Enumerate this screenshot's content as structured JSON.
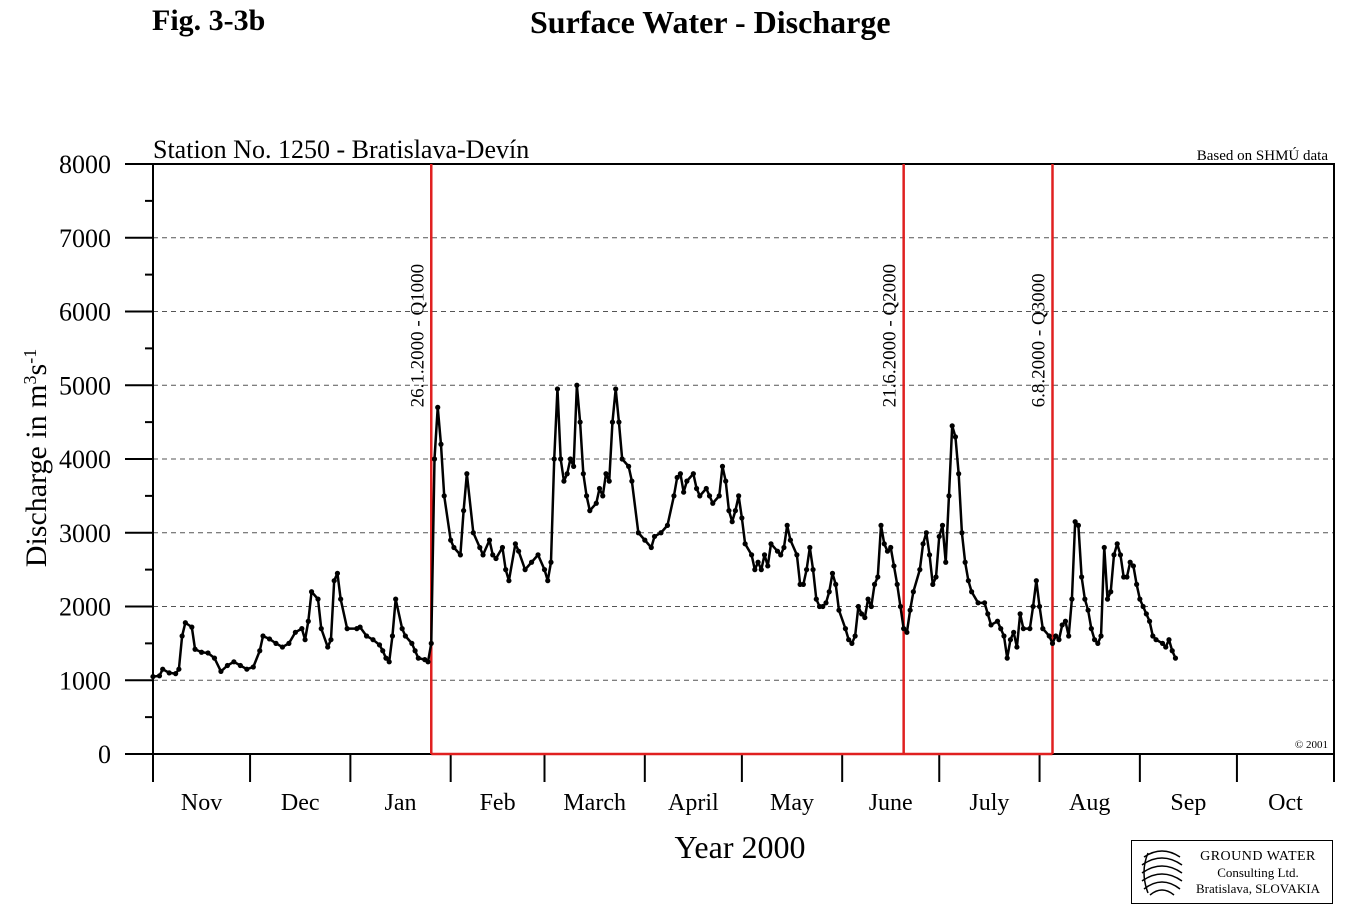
{
  "figure": {
    "number": "Fig. 3-3b",
    "title": "Surface Water - Discharge"
  },
  "chart_data": {
    "type": "line",
    "station": "Station No. 1250 - Bratislava-Devín",
    "source_note": "Based on SHMÚ data",
    "copyright": "© 2001",
    "xlabel": "Year 2000",
    "ylabel": "Discharge in m3s-1",
    "ylim": [
      0,
      8000
    ],
    "yticks": [
      0,
      1000,
      2000,
      3000,
      4000,
      5000,
      6000,
      7000,
      8000
    ],
    "grid": "dashed horizontal",
    "x_domain_days": [
      0,
      365
    ],
    "months": [
      {
        "label": "Nov",
        "start": 0
      },
      {
        "label": "Dec",
        "start": 30
      },
      {
        "label": "Jan",
        "start": 61
      },
      {
        "label": "Feb",
        "start": 92
      },
      {
        "label": "March",
        "start": 121
      },
      {
        "label": "April",
        "start": 152
      },
      {
        "label": "May",
        "start": 182
      },
      {
        "label": "June",
        "start": 213
      },
      {
        "label": "July",
        "start": 243
      },
      {
        "label": "Aug",
        "start": 274
      },
      {
        "label": "Sep",
        "start": 305
      },
      {
        "label": "Oct",
        "start": 335
      }
    ],
    "events": [
      {
        "label": "26.1.2000 - Q1000",
        "day": 86
      },
      {
        "label": "21.6.2000 - Q2000",
        "day": 232
      },
      {
        "label": "6.8.2000 - Q3000",
        "day": 278
      }
    ],
    "series": [
      {
        "values": [
          [
            0,
            1050
          ],
          [
            2,
            1060
          ],
          [
            3,
            1150
          ],
          [
            5,
            1100
          ],
          [
            7,
            1090
          ],
          [
            8,
            1150
          ],
          [
            9,
            1600
          ],
          [
            10,
            1780
          ],
          [
            12,
            1720
          ],
          [
            13,
            1420
          ],
          [
            15,
            1380
          ],
          [
            17,
            1370
          ],
          [
            19,
            1300
          ],
          [
            21,
            1120
          ],
          [
            23,
            1200
          ],
          [
            25,
            1250
          ],
          [
            27,
            1200
          ],
          [
            29,
            1150
          ],
          [
            31,
            1180
          ],
          [
            33,
            1400
          ],
          [
            34,
            1600
          ],
          [
            36,
            1560
          ],
          [
            38,
            1500
          ],
          [
            40,
            1450
          ],
          [
            42,
            1500
          ],
          [
            44,
            1650
          ],
          [
            46,
            1700
          ],
          [
            47,
            1550
          ],
          [
            48,
            1800
          ],
          [
            49,
            2200
          ],
          [
            51,
            2100
          ],
          [
            52,
            1700
          ],
          [
            54,
            1450
          ],
          [
            55,
            1550
          ],
          [
            56,
            2350
          ],
          [
            57,
            2450
          ],
          [
            58,
            2100
          ],
          [
            60,
            1700
          ],
          [
            63,
            1700
          ],
          [
            64,
            1720
          ],
          [
            66,
            1600
          ],
          [
            68,
            1550
          ],
          [
            70,
            1480
          ],
          [
            71,
            1400
          ],
          [
            72,
            1300
          ],
          [
            73,
            1250
          ],
          [
            74,
            1600
          ],
          [
            75,
            2100
          ],
          [
            77,
            1700
          ],
          [
            78,
            1600
          ],
          [
            80,
            1500
          ],
          [
            81,
            1400
          ],
          [
            82,
            1300
          ],
          [
            84,
            1280
          ],
          [
            85,
            1250
          ],
          [
            86,
            1500
          ],
          [
            87,
            4000
          ],
          [
            88,
            4700
          ],
          [
            89,
            4200
          ],
          [
            90,
            3500
          ],
          [
            92,
            2900
          ],
          [
            93,
            2800
          ],
          [
            95,
            2700
          ],
          [
            96,
            3300
          ],
          [
            97,
            3800
          ],
          [
            99,
            3000
          ],
          [
            101,
            2800
          ],
          [
            102,
            2700
          ],
          [
            104,
            2900
          ],
          [
            105,
            2700
          ],
          [
            106,
            2650
          ],
          [
            108,
            2800
          ],
          [
            109,
            2500
          ],
          [
            110,
            2350
          ],
          [
            112,
            2850
          ],
          [
            113,
            2750
          ],
          [
            115,
            2500
          ],
          [
            117,
            2600
          ],
          [
            119,
            2700
          ],
          [
            121,
            2500
          ],
          [
            122,
            2350
          ],
          [
            123,
            2600
          ],
          [
            124,
            4000
          ],
          [
            125,
            4950
          ],
          [
            126,
            4000
          ],
          [
            127,
            3700
          ],
          [
            128,
            3800
          ],
          [
            129,
            4000
          ],
          [
            130,
            3900
          ],
          [
            131,
            5000
          ],
          [
            132,
            4500
          ],
          [
            133,
            3800
          ],
          [
            134,
            3500
          ],
          [
            135,
            3300
          ],
          [
            137,
            3400
          ],
          [
            138,
            3600
          ],
          [
            139,
            3500
          ],
          [
            140,
            3800
          ],
          [
            141,
            3700
          ],
          [
            142,
            4500
          ],
          [
            143,
            4950
          ],
          [
            144,
            4500
          ],
          [
            145,
            4000
          ],
          [
            147,
            3900
          ],
          [
            148,
            3700
          ],
          [
            150,
            3000
          ],
          [
            152,
            2900
          ],
          [
            154,
            2800
          ],
          [
            155,
            2950
          ],
          [
            157,
            3000
          ],
          [
            159,
            3100
          ],
          [
            161,
            3500
          ],
          [
            162,
            3750
          ],
          [
            163,
            3800
          ],
          [
            164,
            3550
          ],
          [
            165,
            3700
          ],
          [
            167,
            3800
          ],
          [
            168,
            3600
          ],
          [
            169,
            3500
          ],
          [
            171,
            3600
          ],
          [
            172,
            3500
          ],
          [
            173,
            3400
          ],
          [
            175,
            3500
          ],
          [
            176,
            3900
          ],
          [
            177,
            3700
          ],
          [
            178,
            3300
          ],
          [
            179,
            3150
          ],
          [
            180,
            3300
          ],
          [
            181,
            3500
          ],
          [
            182,
            3200
          ],
          [
            183,
            2850
          ],
          [
            185,
            2700
          ],
          [
            186,
            2500
          ],
          [
            187,
            2600
          ],
          [
            188,
            2500
          ],
          [
            189,
            2700
          ],
          [
            190,
            2550
          ],
          [
            191,
            2850
          ],
          [
            193,
            2750
          ],
          [
            194,
            2700
          ],
          [
            195,
            2800
          ],
          [
            196,
            3100
          ],
          [
            197,
            2900
          ],
          [
            199,
            2700
          ],
          [
            200,
            2300
          ],
          [
            201,
            2300
          ],
          [
            202,
            2500
          ],
          [
            203,
            2800
          ],
          [
            204,
            2500
          ],
          [
            205,
            2100
          ],
          [
            206,
            2000
          ],
          [
            207,
            2000
          ],
          [
            208,
            2050
          ],
          [
            209,
            2200
          ],
          [
            210,
            2450
          ],
          [
            211,
            2300
          ],
          [
            212,
            1950
          ],
          [
            214,
            1700
          ],
          [
            215,
            1550
          ],
          [
            216,
            1500
          ],
          [
            217,
            1600
          ],
          [
            218,
            2000
          ],
          [
            219,
            1900
          ],
          [
            220,
            1850
          ],
          [
            221,
            2100
          ],
          [
            222,
            2000
          ],
          [
            223,
            2300
          ],
          [
            224,
            2400
          ],
          [
            225,
            3100
          ],
          [
            226,
            2850
          ],
          [
            227,
            2750
          ],
          [
            228,
            2800
          ],
          [
            229,
            2550
          ],
          [
            230,
            2300
          ],
          [
            231,
            2000
          ],
          [
            232,
            1700
          ],
          [
            233,
            1650
          ],
          [
            234,
            1950
          ],
          [
            235,
            2200
          ],
          [
            237,
            2500
          ],
          [
            238,
            2850
          ],
          [
            239,
            3000
          ],
          [
            240,
            2700
          ],
          [
            241,
            2300
          ],
          [
            242,
            2400
          ],
          [
            243,
            2950
          ],
          [
            244,
            3100
          ],
          [
            245,
            2600
          ],
          [
            246,
            3500
          ],
          [
            247,
            4450
          ],
          [
            248,
            4300
          ],
          [
            249,
            3800
          ],
          [
            250,
            3000
          ],
          [
            251,
            2600
          ],
          [
            252,
            2350
          ],
          [
            253,
            2200
          ],
          [
            255,
            2050
          ],
          [
            257,
            2050
          ],
          [
            258,
            1900
          ],
          [
            259,
            1750
          ],
          [
            261,
            1800
          ],
          [
            262,
            1700
          ],
          [
            263,
            1600
          ],
          [
            264,
            1300
          ],
          [
            265,
            1550
          ],
          [
            266,
            1650
          ],
          [
            267,
            1450
          ],
          [
            268,
            1900
          ],
          [
            269,
            1700
          ],
          [
            271,
            1700
          ],
          [
            272,
            2000
          ],
          [
            273,
            2350
          ],
          [
            274,
            2000
          ],
          [
            275,
            1700
          ],
          [
            277,
            1600
          ],
          [
            278,
            1500
          ],
          [
            279,
            1600
          ],
          [
            280,
            1550
          ],
          [
            281,
            1750
          ],
          [
            282,
            1800
          ],
          [
            283,
            1600
          ],
          [
            284,
            2100
          ],
          [
            285,
            3150
          ],
          [
            286,
            3100
          ],
          [
            287,
            2400
          ],
          [
            288,
            2100
          ],
          [
            289,
            1950
          ],
          [
            290,
            1700
          ],
          [
            291,
            1550
          ],
          [
            292,
            1500
          ],
          [
            293,
            1600
          ],
          [
            294,
            2800
          ],
          [
            295,
            2100
          ],
          [
            296,
            2200
          ],
          [
            297,
            2700
          ],
          [
            298,
            2850
          ],
          [
            299,
            2700
          ],
          [
            300,
            2400
          ],
          [
            301,
            2400
          ],
          [
            302,
            2600
          ],
          [
            303,
            2550
          ],
          [
            304,
            2300
          ],
          [
            305,
            2100
          ],
          [
            306,
            2000
          ],
          [
            307,
            1900
          ],
          [
            308,
            1800
          ],
          [
            309,
            1600
          ],
          [
            310,
            1550
          ],
          [
            312,
            1500
          ],
          [
            313,
            1450
          ],
          [
            314,
            1550
          ],
          [
            315,
            1400
          ],
          [
            316,
            1300
          ]
        ]
      }
    ]
  },
  "logo": {
    "line1": "GROUND WATER",
    "line2": "Consulting Ltd.",
    "line3": "Bratislava, SLOVAKIA"
  }
}
